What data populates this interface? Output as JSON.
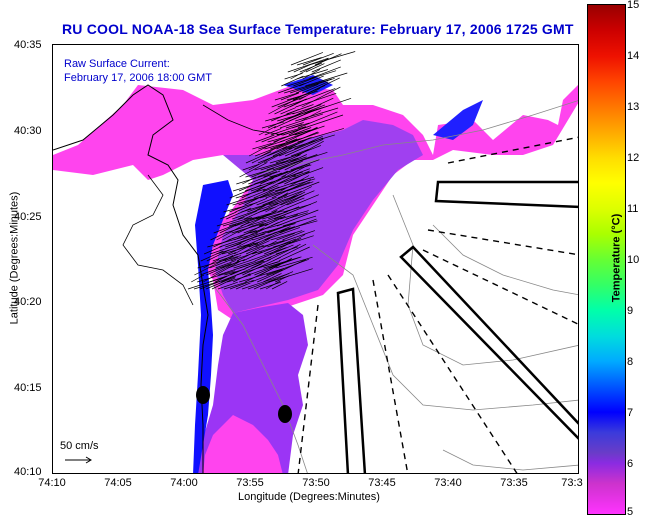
{
  "title": "RU COOL  NOAA-18  Sea Surface Temperature:  February 17, 2006 1725 GMT",
  "overlay": {
    "line1": "Raw Surface Current:",
    "line2": "February 17, 2006 18:00 GMT"
  },
  "scale_vector_label": "50 cm/s",
  "axes": {
    "xlabel": "Longitude (Degrees:Minutes)",
    "ylabel": "Latitude (Degrees:Minutes)",
    "xticks": [
      "74:10",
      "74:05",
      "74:00",
      "73:55",
      "73:50",
      "73:45",
      "73:40",
      "73:35",
      "73:3"
    ],
    "yticks": [
      "40:35",
      "40:30",
      "40:25",
      "40:20",
      "40:15",
      "40:10"
    ]
  },
  "colorbar": {
    "title": "Temperature (°C)",
    "ticks": [
      "15",
      "14",
      "13",
      "12",
      "11",
      "10",
      "9",
      "8",
      "7",
      "6",
      "5"
    ],
    "min": 5,
    "max": 15
  },
  "colors": {
    "title": "#0000cc",
    "sst_pink": "#ff33ff",
    "sst_violet": "#9b30ff",
    "sst_blue": "#0000ff"
  }
}
